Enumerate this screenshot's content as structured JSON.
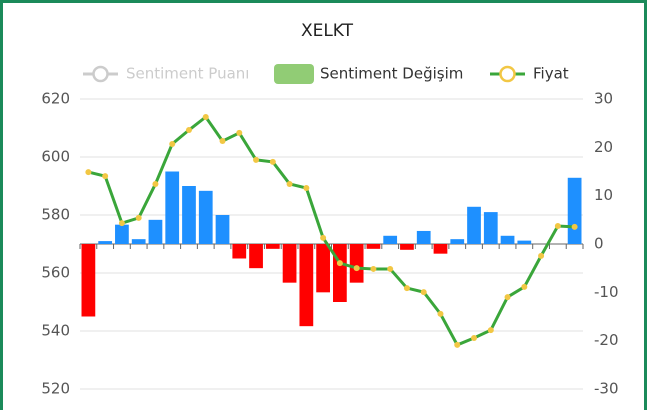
{
  "chart_data": {
    "type": "combo",
    "title": "XELKT",
    "categories": [
      null,
      null,
      null,
      null,
      null,
      null,
      null,
      null,
      null,
      null,
      null,
      null,
      null,
      null,
      null,
      null,
      null,
      null,
      null,
      null,
      null,
      null,
      null,
      null,
      null,
      null,
      null,
      null,
      null,
      null
    ],
    "series": [
      {
        "name": "Sentiment Puanı",
        "color": "#cccccc",
        "visible": false,
        "type": "line",
        "axis": "y2"
      },
      {
        "name": "Sentiment Değişim",
        "color": "#91cc75",
        "positive_color": "#1e90ff",
        "negative_color": "#ff0000",
        "type": "bar",
        "axis": "y2",
        "values": [
          -15,
          0.6,
          4,
          1,
          5,
          15,
          12,
          11,
          6,
          -3,
          -5,
          -1,
          -8,
          -17,
          -10,
          -12,
          -8,
          -1,
          1.7,
          -1.2,
          2.7,
          -2,
          1,
          7.7,
          6.6,
          1.7,
          0.7,
          0,
          0,
          13.7
        ]
      },
      {
        "name": "Fiyat",
        "color": "#3aa63a",
        "marker_color": "#f2c744",
        "type": "line",
        "axis": "y",
        "values": [
          594.8,
          593.4,
          577.2,
          579,
          590.7,
          604.5,
          609.3,
          613.8,
          605.5,
          608.3,
          599,
          598.3,
          590.7,
          589.3,
          572.1,
          563.4,
          561.7,
          561.4,
          561.4,
          554.8,
          553.4,
          545.9,
          535.2,
          537.6,
          540.3,
          551.7,
          555.2,
          565.9,
          576.2,
          575.9
        ]
      }
    ],
    "ylim": [
      520,
      620
    ],
    "yticks": [
      520,
      540,
      560,
      580,
      600,
      620
    ],
    "y2lim": [
      -30,
      30
    ],
    "y2ticks": [
      -30,
      -20,
      -10,
      0,
      10,
      20,
      30
    ],
    "grid": true
  }
}
